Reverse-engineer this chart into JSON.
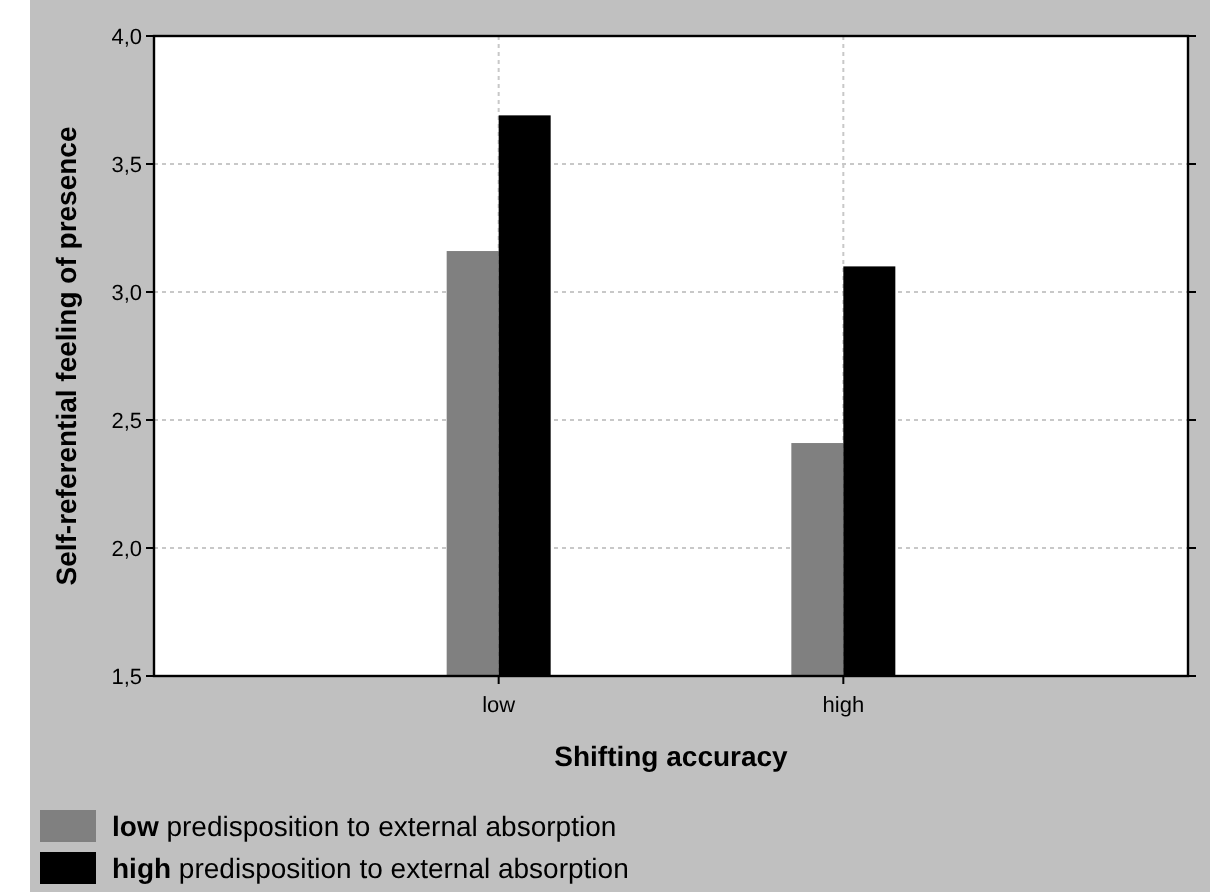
{
  "chart_data": {
    "type": "bar",
    "xlabel": "Shifting accuracy",
    "ylabel": "Self-referential feeling of presence",
    "categories": [
      "low",
      "high"
    ],
    "series": [
      {
        "name": "low predisposition to external absorption",
        "color": "#808080",
        "values": [
          3.16,
          2.41
        ]
      },
      {
        "name": "high predisposition to external absorption",
        "color": "#000000",
        "values": [
          3.69,
          3.1
        ]
      }
    ],
    "ylim": [
      1.5,
      4.0
    ],
    "yticks": [
      {
        "value": 1.5,
        "label": "1,5"
      },
      {
        "value": 2.0,
        "label": "2,0"
      },
      {
        "value": 2.5,
        "label": "2,5"
      },
      {
        "value": 3.0,
        "label": "3,0"
      },
      {
        "value": 3.5,
        "label": "3,5"
      },
      {
        "value": 4.0,
        "label": "4,0"
      }
    ],
    "grid": true,
    "legend": "bottom left"
  }
}
